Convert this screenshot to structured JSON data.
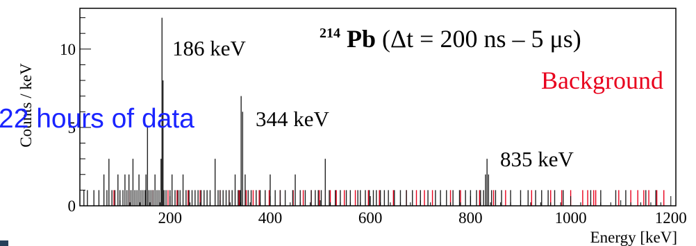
{
  "chart_data": {
    "type": "bar",
    "title": {
      "isotope_mass": "214",
      "isotope_symbol": "Pb",
      "window": " (Δt = 200 ns – 5 μs)"
    },
    "legend": {
      "background_label": "Background",
      "background_color": "#e8001c"
    },
    "annotations": {
      "data_note": "22 hours of data",
      "peak_186": "186 keV",
      "peak_344": "344 keV",
      "peak_835": "835 keV"
    },
    "xlabel": "Energy [keV]",
    "ylabel": "Counts / keV",
    "xlim": [
      20,
      1210
    ],
    "ylim": [
      0,
      12.6
    ],
    "x_ticks": [
      200,
      400,
      600,
      800,
      1000,
      1200
    ],
    "y_ticks": [
      0,
      5,
      10
    ],
    "y_tick_labels": [
      "0",
      "5",
      "10"
    ],
    "grid": false,
    "series": [
      {
        "name": "",
        "color": "#222222",
        "bins": [
          [
            28,
            1
          ],
          [
            35,
            1
          ],
          [
            48,
            1
          ],
          [
            58,
            1
          ],
          [
            68,
            2
          ],
          [
            74,
            1
          ],
          [
            78,
            3
          ],
          [
            84,
            1
          ],
          [
            90,
            1
          ],
          [
            96,
            2
          ],
          [
            100,
            1
          ],
          [
            106,
            1
          ],
          [
            110,
            2
          ],
          [
            114,
            1
          ],
          [
            118,
            2
          ],
          [
            122,
            1
          ],
          [
            126,
            3
          ],
          [
            130,
            1
          ],
          [
            134,
            1
          ],
          [
            138,
            2
          ],
          [
            142,
            1
          ],
          [
            146,
            1
          ],
          [
            150,
            1
          ],
          [
            152,
            2
          ],
          [
            155,
            5
          ],
          [
            158,
            1
          ],
          [
            162,
            1
          ],
          [
            166,
            1
          ],
          [
            170,
            2
          ],
          [
            174,
            1
          ],
          [
            178,
            1
          ],
          [
            182,
            3
          ],
          [
            184,
            12
          ],
          [
            186,
            8
          ],
          [
            188,
            1
          ],
          [
            192,
            1
          ],
          [
            200,
            1
          ],
          [
            204,
            2
          ],
          [
            210,
            1
          ],
          [
            216,
            1
          ],
          [
            220,
            1
          ],
          [
            226,
            2
          ],
          [
            232,
            1
          ],
          [
            238,
            1
          ],
          [
            244,
            1
          ],
          [
            250,
            1
          ],
          [
            256,
            1
          ],
          [
            262,
            1
          ],
          [
            268,
            1
          ],
          [
            274,
            1
          ],
          [
            280,
            1
          ],
          [
            290,
            3
          ],
          [
            296,
            1
          ],
          [
            300,
            1
          ],
          [
            306,
            1
          ],
          [
            312,
            1
          ],
          [
            318,
            1
          ],
          [
            324,
            1
          ],
          [
            330,
            2
          ],
          [
            336,
            1
          ],
          [
            340,
            1
          ],
          [
            342,
            7
          ],
          [
            345,
            6
          ],
          [
            350,
            2
          ],
          [
            356,
            1
          ],
          [
            362,
            1
          ],
          [
            372,
            1
          ],
          [
            380,
            1
          ],
          [
            390,
            1
          ],
          [
            400,
            2
          ],
          [
            410,
            1
          ],
          [
            420,
            1
          ],
          [
            430,
            1
          ],
          [
            445,
            1
          ],
          [
            450,
            2
          ],
          [
            460,
            1
          ],
          [
            470,
            1
          ],
          [
            482,
            1
          ],
          [
            490,
            1
          ],
          [
            496,
            1
          ],
          [
            502,
            1
          ],
          [
            510,
            3
          ],
          [
            518,
            1
          ],
          [
            530,
            1
          ],
          [
            540,
            1
          ],
          [
            552,
            1
          ],
          [
            560,
            1
          ],
          [
            575,
            1
          ],
          [
            580,
            1
          ],
          [
            590,
            1
          ],
          [
            598,
            1
          ],
          [
            606,
            1
          ],
          [
            612,
            1
          ],
          [
            620,
            1
          ],
          [
            628,
            1
          ],
          [
            636,
            1
          ],
          [
            648,
            1
          ],
          [
            660,
            1
          ],
          [
            672,
            1
          ],
          [
            684,
            1
          ],
          [
            700,
            1
          ],
          [
            715,
            1
          ],
          [
            730,
            1
          ],
          [
            740,
            1
          ],
          [
            752,
            1
          ],
          [
            765,
            1
          ],
          [
            778,
            1
          ],
          [
            790,
            1
          ],
          [
            800,
            1
          ],
          [
            812,
            1
          ],
          [
            820,
            1
          ],
          [
            826,
            1
          ],
          [
            830,
            2
          ],
          [
            833,
            3
          ],
          [
            836,
            2
          ],
          [
            842,
            1
          ],
          [
            850,
            1
          ],
          [
            862,
            1
          ],
          [
            880,
            1
          ],
          [
            900,
            1
          ],
          [
            915,
            1
          ],
          [
            930,
            1
          ],
          [
            942,
            1
          ],
          [
            955,
            1
          ],
          [
            968,
            1
          ],
          [
            985,
            1
          ],
          [
            1040,
            1
          ],
          [
            1060,
            1
          ],
          [
            1090,
            1
          ],
          [
            1110,
            1
          ],
          [
            1150,
            1
          ],
          [
            1170,
            1
          ]
        ]
      },
      {
        "name": "Background",
        "color": "#e8001c",
        "bins": [
          [
            88,
            1
          ],
          [
            118,
            1
          ],
          [
            166,
            1
          ],
          [
            196,
            1
          ],
          [
            214,
            1
          ],
          [
            236,
            1
          ],
          [
            260,
            1
          ],
          [
            300,
            1
          ],
          [
            318,
            1
          ],
          [
            338,
            1
          ],
          [
            352,
            1
          ],
          [
            366,
            1
          ],
          [
            378,
            1
          ],
          [
            398,
            1
          ],
          [
            420,
            1
          ],
          [
            446,
            1
          ],
          [
            466,
            1
          ],
          [
            482,
            1
          ],
          [
            498,
            1
          ],
          [
            520,
            1
          ],
          [
            532,
            1
          ],
          [
            548,
            1
          ],
          [
            570,
            1
          ],
          [
            596,
            1
          ],
          [
            618,
            1
          ],
          [
            646,
            1
          ],
          [
            672,
            1
          ],
          [
            692,
            1
          ],
          [
            708,
            1
          ],
          [
            724,
            1
          ],
          [
            760,
            1
          ],
          [
            780,
            1
          ],
          [
            818,
            1
          ],
          [
            846,
            1
          ],
          [
            870,
            1
          ],
          [
            922,
            1
          ],
          [
            960,
            1
          ],
          [
            982,
            1
          ],
          [
            1000,
            1
          ],
          [
            1024,
            1
          ],
          [
            1034,
            1
          ],
          [
            1046,
            1
          ],
          [
            1050,
            1
          ],
          [
            1096,
            1
          ],
          [
            1120,
            1
          ],
          [
            1134,
            1
          ],
          [
            1146,
            1
          ],
          [
            1156,
            1
          ],
          [
            1172,
            1
          ],
          [
            1186,
            1
          ]
        ]
      }
    ]
  }
}
